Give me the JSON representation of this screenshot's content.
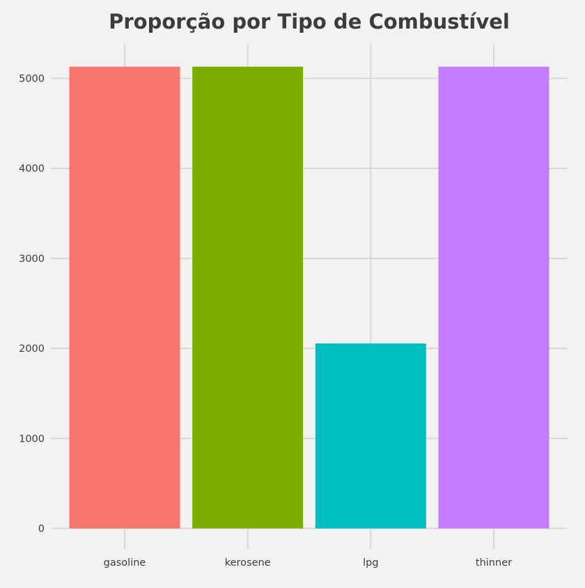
{
  "chart_data": {
    "type": "bar",
    "title": "Proporção por Tipo de Combustível",
    "xlabel": "",
    "ylabel": "",
    "categories": [
      "gasoline",
      "kerosene",
      "lpg",
      "thinner"
    ],
    "values": [
      5130,
      5130,
      2055,
      5130
    ],
    "colors": [
      "#f8766d",
      "#7cae00",
      "#00bfc4",
      "#c77cff"
    ],
    "ylim": [
      0,
      5400
    ],
    "yticks": [
      0,
      1000,
      2000,
      3000,
      4000,
      5000
    ],
    "grid": true,
    "legend": "none",
    "background": "#f2f2f2",
    "grid_color": "#d2d2d2",
    "text_color": "#3c3c3c"
  }
}
